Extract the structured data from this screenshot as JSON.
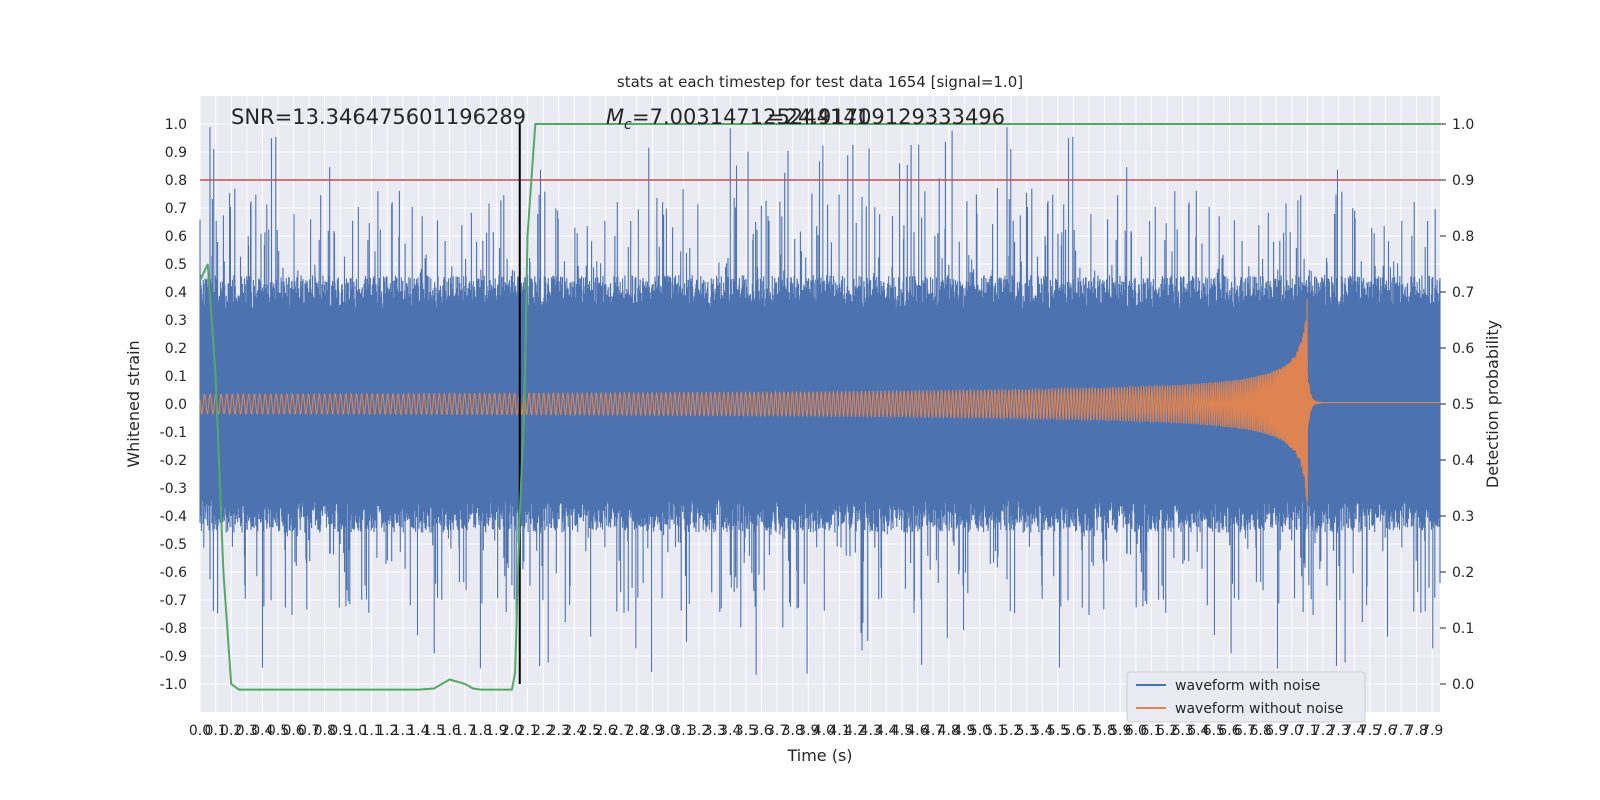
{
  "chart_data": {
    "type": "line",
    "title": "stats at each timestep for test data 1654 [signal=1.0]",
    "xlabel": "Time (s)",
    "ylabel_left": "Whitened strain",
    "ylabel_right": "Detection probability",
    "xlim": [
      0.0,
      7.95
    ],
    "ylim_left": [
      -1.1,
      1.1
    ],
    "ylim_right": [
      -0.05,
      1.05
    ],
    "xticks": [
      0.0,
      0.1,
      0.2,
      0.3,
      0.4,
      0.5,
      0.6,
      0.7,
      0.8,
      0.9,
      1.0,
      1.1,
      1.2,
      1.3,
      1.4,
      1.5,
      1.6,
      1.7,
      1.8,
      1.9,
      2.0,
      2.1,
      2.2,
      2.3,
      2.4,
      2.5,
      2.6,
      2.7,
      2.8,
      2.9,
      3.0,
      3.1,
      3.2,
      3.3,
      3.4,
      3.5,
      3.6,
      3.7,
      3.8,
      3.9,
      4.0,
      4.1,
      4.2,
      4.3,
      4.4,
      4.5,
      4.6,
      4.7,
      4.8,
      4.9,
      5.0,
      5.1,
      5.2,
      5.3,
      5.4,
      5.5,
      5.6,
      5.7,
      5.8,
      5.9,
      6.0,
      6.1,
      6.2,
      6.3,
      6.4,
      6.5,
      6.6,
      6.7,
      6.8,
      6.9,
      7.0,
      7.1,
      7.2,
      7.3,
      7.4,
      7.5,
      7.6,
      7.7,
      7.8,
      7.9
    ],
    "yticks_left": [
      -1.0,
      -0.9,
      -0.8,
      -0.7,
      -0.6,
      -0.5,
      -0.4,
      -0.3,
      -0.2,
      -0.1,
      0.0,
      0.1,
      0.2,
      0.3,
      0.4,
      0.5,
      0.6,
      0.7,
      0.8,
      0.9,
      1.0
    ],
    "yticks_right": [
      0.0,
      0.1,
      0.2,
      0.3,
      0.4,
      0.5,
      0.6,
      0.7,
      0.8,
      0.9,
      1.0
    ],
    "grid": true,
    "legend_position": "bottom-right",
    "annotations": {
      "snr": "SNR=13.346475601196289",
      "mc_symbol": "M",
      "mc_subscript": "c",
      "mc_value": "=7.003147125244141",
      "overlap_value": "=24.91709129333496"
    },
    "threshold_prob": 0.9,
    "event_time": 2.05,
    "series": [
      {
        "name": "waveform with noise",
        "color": "#4c72b0",
        "axis": "left",
        "kind": "noise",
        "amplitude_envelope": [
          -0.97,
          0.99
        ],
        "typical_band": [
          -0.4,
          0.4
        ]
      },
      {
        "name": "waveform without noise",
        "color": "#dd8452",
        "axis": "left",
        "kind": "chirp",
        "start_time": 0.0,
        "merger_time": 7.1,
        "amplitude_start": 0.02,
        "amplitude_peak": 0.4
      },
      {
        "name": "detection probability",
        "color": "#55a868",
        "axis": "right",
        "kind": "line",
        "x": [
          0.0,
          0.05,
          0.1,
          0.15,
          0.2,
          0.25,
          0.3,
          0.4,
          0.5,
          0.6,
          0.7,
          0.8,
          0.9,
          1.0,
          1.1,
          1.2,
          1.3,
          1.4,
          1.5,
          1.6,
          1.7,
          1.75,
          1.8,
          1.9,
          2.0,
          2.02,
          2.05,
          2.08,
          2.1,
          2.15,
          2.2,
          3.0,
          4.0,
          5.0,
          6.0,
          7.0,
          7.95
        ],
        "y": [
          0.72,
          0.75,
          0.55,
          0.2,
          0.0,
          -0.01,
          -0.01,
          -0.01,
          -0.01,
          -0.01,
          -0.01,
          -0.01,
          -0.01,
          -0.01,
          -0.01,
          -0.01,
          -0.01,
          -0.01,
          -0.008,
          0.008,
          0.0,
          -0.008,
          -0.01,
          -0.01,
          -0.01,
          0.02,
          0.3,
          0.5,
          0.8,
          1.0,
          1.0,
          1.0,
          1.0,
          1.0,
          1.0,
          1.0,
          1.0
        ]
      },
      {
        "name": "threshold",
        "color": "#c44e52",
        "axis": "right",
        "kind": "hline",
        "value": 0.9
      },
      {
        "name": "event marker",
        "color": "#000000",
        "axis": "left",
        "kind": "vline",
        "value": 2.05
      }
    ],
    "legend": [
      "waveform with noise",
      "waveform without noise"
    ]
  }
}
